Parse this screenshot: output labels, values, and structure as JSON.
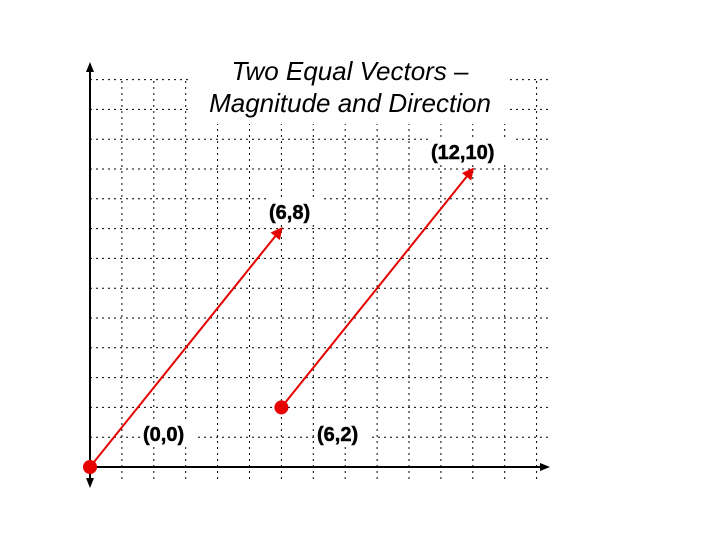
{
  "title": {
    "line1": "Two Equal Vectors –",
    "line2": "Magnitude and Direction"
  },
  "labels": {
    "origin": "(0,0)",
    "tip1": "(6,8)",
    "tail2": "(6,2)",
    "tip2": "(12,10)"
  },
  "vectors": [
    {
      "name": "vector-1",
      "from": [
        0,
        0
      ],
      "to": [
        6,
        8
      ]
    },
    {
      "name": "vector-2",
      "from": [
        6,
        2
      ],
      "to": [
        12,
        10
      ]
    }
  ],
  "grid": {
    "x_max": 14,
    "y_max": 13
  },
  "colors": {
    "vector": "#e60000",
    "axis": "#000000",
    "grid": "#000000"
  }
}
